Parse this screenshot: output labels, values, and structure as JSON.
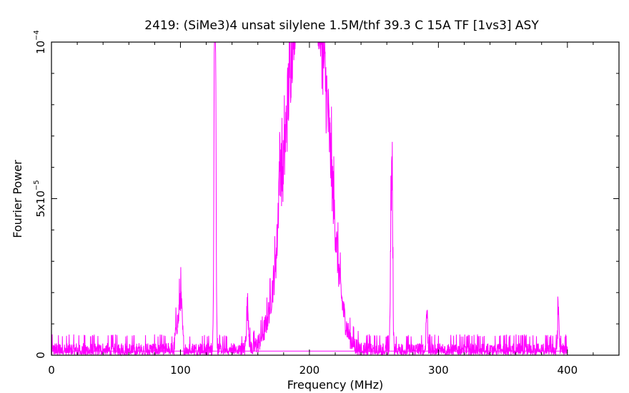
{
  "chart_data": {
    "type": "line",
    "title": "2419: (SiMe3)4 unsat silylene 1.5M/thf   39.3 C 15A TF   [1vs3] ASY",
    "xlabel": "Frequency (MHz)",
    "ylabel": "Fourier Power",
    "xlim": [
      0,
      440
    ],
    "ylim": [
      0,
      0.0001
    ],
    "x_ticks": [
      {
        "value": 0,
        "label": "0"
      },
      {
        "value": 100,
        "label": "100"
      },
      {
        "value": 200,
        "label": "200"
      },
      {
        "value": 300,
        "label": "300"
      },
      {
        "value": 400,
        "label": "400"
      }
    ],
    "y_ticks": [
      {
        "value": 0,
        "label": "0",
        "mantissa": "",
        "exponent": ""
      },
      {
        "value": 5e-05,
        "label": "",
        "mantissa": "5x10",
        "exponent": "−5"
      },
      {
        "value": 0.0001,
        "label": "",
        "mantissa": "10",
        "exponent": "−4"
      }
    ],
    "grid": false,
    "legend": "none",
    "series": [
      {
        "color": "#ff00ff",
        "clip_max": 0.0001,
        "x_range": [
          0,
          400
        ],
        "baseline": 1.3e-06,
        "peaks": [
          {
            "x": 100,
            "height": 1.8e-05,
            "width": 1.2
          },
          {
            "x": 97,
            "height": 8e-06,
            "width": 1.0
          },
          {
            "x": 127,
            "height": 9.4e-05,
            "width": 0.6
          },
          {
            "x": 126.4,
            "height": 7.7e-05,
            "width": 0.5
          },
          {
            "x": 152,
            "height": 1.4e-05,
            "width": 0.9
          },
          {
            "x": 177,
            "height": 1.8e-05,
            "width": 1.0
          },
          {
            "x": 197,
            "height": 0.00014,
            "width": 13
          },
          {
            "x": 214,
            "height": 1.8e-05,
            "width": 6
          },
          {
            "x": 264,
            "height": 5.4e-05,
            "width": 0.6
          },
          {
            "x": 263,
            "height": 2.2e-05,
            "width": 0.5
          },
          {
            "x": 291,
            "height": 1.3e-05,
            "width": 0.6
          },
          {
            "x": 393,
            "height": 1.3e-05,
            "width": 0.6
          }
        ],
        "noise": 2.8e-06
      }
    ]
  }
}
